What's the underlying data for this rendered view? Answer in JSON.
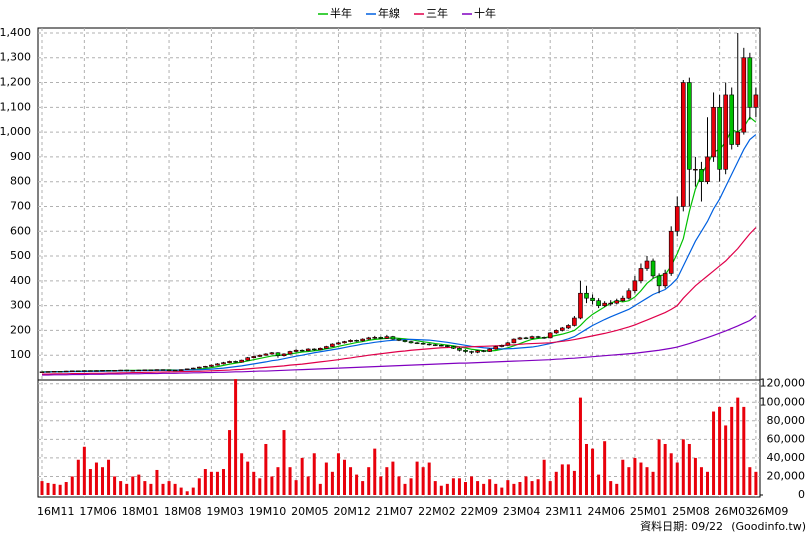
{
  "chart_data": {
    "type": "candlestick",
    "legend": "top",
    "grid": true,
    "up_color": "#e8000b",
    "down_color": "#00c000",
    "source_date": "資料日期: 09/22",
    "source": "(Goodinfo.tw)",
    "categories": [
      "16M11",
      null,
      null,
      null,
      null,
      null,
      null,
      "17M06",
      null,
      null,
      null,
      null,
      null,
      null,
      "18M01",
      null,
      null,
      null,
      null,
      null,
      null,
      "18M08",
      null,
      null,
      null,
      null,
      null,
      null,
      "19M03",
      null,
      null,
      null,
      null,
      null,
      null,
      "19M10",
      null,
      null,
      null,
      null,
      null,
      null,
      "20M05",
      null,
      null,
      null,
      null,
      null,
      null,
      "20M12",
      null,
      null,
      null,
      null,
      null,
      null,
      "21M07",
      null,
      null,
      null,
      null,
      null,
      null,
      "22M02",
      null,
      null,
      null,
      null,
      null,
      null,
      "22M09",
      null,
      null,
      null,
      null,
      null,
      null,
      "23M04",
      null,
      null,
      null,
      null,
      null,
      null,
      "23M11",
      null,
      null,
      null,
      null,
      null,
      null,
      "24M06",
      null,
      null,
      null,
      null,
      null,
      null,
      "25M01",
      null,
      null,
      null,
      null,
      null,
      null,
      "25M08",
      null,
      null,
      null,
      null,
      null,
      null,
      "26M03",
      null,
      null,
      null,
      null,
      null,
      "26M09"
    ],
    "open": [
      32,
      33,
      34,
      35,
      34,
      36,
      37,
      36,
      38,
      37,
      38,
      39,
      38,
      39,
      40,
      38,
      39,
      40,
      41,
      40,
      42,
      41,
      40,
      38,
      42,
      45,
      48,
      52,
      55,
      60,
      65,
      70,
      75,
      72,
      80,
      90,
      95,
      100,
      105,
      110,
      98,
      105,
      115,
      120,
      118,
      125,
      122,
      128,
      135,
      145,
      150,
      155,
      160,
      158,
      165,
      170,
      172,
      168,
      175,
      165,
      160,
      155,
      150,
      148,
      145,
      142,
      140,
      138,
      135,
      128,
      120,
      115,
      112,
      118,
      115,
      125,
      135,
      140,
      150,
      165,
      170,
      168,
      175,
      172,
      170,
      190,
      200,
      210,
      220,
      250,
      350,
      330,
      320,
      300,
      310,
      310,
      320,
      330,
      360,
      400,
      450,
      480,
      420,
      380,
      430,
      600,
      700,
      1200,
      850,
      850,
      800,
      900,
      1100,
      850,
      1150,
      950,
      1000,
      1300,
      1100
    ],
    "high": [
      34,
      35,
      36,
      36,
      37,
      38,
      38,
      39,
      39,
      39,
      40,
      40,
      40,
      41,
      41,
      40,
      41,
      42,
      42,
      43,
      43,
      42,
      41,
      43,
      46,
      50,
      54,
      57,
      62,
      68,
      73,
      78,
      78,
      82,
      93,
      98,
      103,
      108,
      113,
      112,
      108,
      118,
      124,
      123,
      128,
      128,
      131,
      138,
      148,
      153,
      158,
      164,
      163,
      168,
      174,
      178,
      175,
      182,
      178,
      168,
      163,
      158,
      153,
      151,
      148,
      145,
      143,
      141,
      138,
      131,
      124,
      118,
      121,
      121,
      128,
      138,
      143,
      153,
      168,
      174,
      174,
      179,
      178,
      175,
      193,
      204,
      214,
      225,
      258,
      400,
      380,
      345,
      330,
      318,
      322,
      328,
      340,
      370,
      420,
      470,
      500,
      490,
      430,
      445,
      620,
      740,
      1210,
      1220,
      900,
      880,
      1060,
      1160,
      1150,
      1200,
      1180,
      1400,
      1340,
      1320,
      1180
    ],
    "low": [
      31,
      32,
      33,
      33,
      33,
      35,
      35,
      35,
      36,
      36,
      37,
      37,
      37,
      38,
      37,
      37,
      38,
      39,
      39,
      39,
      40,
      39,
      37,
      37,
      41,
      44,
      47,
      50,
      53,
      58,
      63,
      68,
      70,
      70,
      78,
      88,
      93,
      98,
      102,
      90,
      95,
      102,
      112,
      115,
      116,
      118,
      120,
      126,
      133,
      142,
      147,
      152,
      154,
      155,
      162,
      166,
      165,
      166,
      162,
      157,
      152,
      147,
      145,
      142,
      139,
      137,
      135,
      132,
      125,
      115,
      110,
      105,
      108,
      112,
      113,
      122,
      132,
      138,
      148,
      162,
      165,
      165,
      168,
      166,
      168,
      186,
      196,
      206,
      216,
      245,
      310,
      305,
      290,
      295,
      300,
      305,
      315,
      325,
      350,
      390,
      440,
      410,
      350,
      370,
      420,
      580,
      680,
      700,
      780,
      720,
      790,
      880,
      800,
      830,
      930,
      940,
      990,
      1050,
      1060
    ],
    "close": [
      33,
      34,
      35,
      34,
      36,
      37,
      36,
      38,
      37,
      38,
      39,
      38,
      39,
      40,
      38,
      39,
      40,
      41,
      40,
      42,
      41,
      40,
      38,
      42,
      45,
      48,
      52,
      55,
      60,
      65,
      70,
      75,
      72,
      80,
      90,
      95,
      100,
      105,
      110,
      98,
      105,
      115,
      120,
      118,
      125,
      122,
      128,
      135,
      145,
      150,
      155,
      160,
      158,
      165,
      170,
      172,
      168,
      175,
      165,
      160,
      155,
      150,
      148,
      145,
      142,
      140,
      138,
      135,
      128,
      120,
      115,
      112,
      118,
      115,
      125,
      135,
      140,
      150,
      165,
      170,
      168,
      175,
      172,
      170,
      190,
      200,
      210,
      220,
      250,
      350,
      330,
      320,
      300,
      310,
      310,
      320,
      330,
      360,
      400,
      450,
      480,
      420,
      380,
      430,
      600,
      700,
      1200,
      850,
      850,
      800,
      900,
      1100,
      850,
      1150,
      950,
      1000,
      1300,
      1100,
      1150
    ],
    "ylim": [
      0,
      1420
    ],
    "yticks": [
      100,
      200,
      300,
      400,
      500,
      600,
      700,
      800,
      900,
      {
        "value": 1000,
        "label": "1,000"
      },
      {
        "value": 1100,
        "label": "1,100"
      },
      {
        "value": 1200,
        "label": "1,200"
      },
      {
        "value": 1300,
        "label": "1,300"
      },
      {
        "value": 1400,
        "label": "1,400"
      }
    ],
    "series": [
      {
        "name": "半年",
        "color": "#00c000",
        "values": [
          33,
          33,
          34,
          34,
          34,
          35,
          35,
          36,
          36,
          37,
          37,
          38,
          38,
          38,
          39,
          39,
          39,
          39,
          40,
          40,
          40,
          41,
          40,
          40,
          41,
          42,
          44,
          47,
          50,
          54,
          59,
          64,
          68,
          72,
          77,
          82,
          87,
          92,
          97,
          99,
          101,
          105,
          109,
          113,
          115,
          118,
          121,
          126,
          130,
          136,
          141,
          146,
          151,
          155,
          160,
          164,
          166,
          168,
          170,
          168,
          166,
          163,
          158,
          154,
          151,
          147,
          144,
          141,
          138,
          134,
          129,
          124,
          121,
          118,
          117,
          119,
          124,
          130,
          138,
          147,
          156,
          164,
          168,
          170,
          175,
          180,
          185,
          192,
          200,
          220,
          245,
          265,
          280,
          295,
          310,
          320,
          315,
          320,
          335,
          360,
          390,
          410,
          420,
          425,
          460,
          510,
          570,
          680,
          770,
          830,
          870,
          920,
          930,
          960,
          1010,
          1000,
          1020,
          1060,
          1040
        ]
      },
      {
        "name": "年線",
        "color": "#0060e0",
        "values": [
          32,
          32,
          33,
          33,
          33,
          34,
          34,
          34,
          35,
          35,
          35,
          36,
          36,
          37,
          37,
          37,
          38,
          38,
          38,
          39,
          39,
          39,
          39,
          40,
          40,
          41,
          41,
          43,
          44,
          46,
          48,
          51,
          54,
          57,
          61,
          65,
          69,
          73,
          78,
          81,
          86,
          91,
          96,
          100,
          105,
          110,
          114,
          118,
          122,
          126,
          131,
          136,
          140,
          145,
          148,
          152,
          155,
          158,
          160,
          162,
          163,
          164,
          163,
          162,
          161,
          158,
          155,
          152,
          148,
          144,
          140,
          136,
          133,
          130,
          128,
          127,
          125,
          126,
          127,
          129,
          131,
          133,
          137,
          142,
          147,
          153,
          159,
          166,
          175,
          190,
          205,
          220,
          232,
          244,
          255,
          265,
          275,
          285,
          300,
          315,
          330,
          345,
          355,
          365,
          385,
          410,
          460,
          510,
          560,
          600,
          640,
          690,
          730,
          780,
          830,
          880,
          930,
          970,
          990
        ]
      },
      {
        "name": "三年",
        "color": "#e0004a",
        "values": [
          24,
          24,
          25,
          25,
          25,
          26,
          26,
          26,
          27,
          27,
          27,
          28,
          28,
          29,
          29,
          30,
          30,
          31,
          31,
          32,
          32,
          33,
          33,
          34,
          34,
          35,
          35,
          36,
          37,
          38,
          39,
          40,
          42,
          43,
          45,
          47,
          49,
          51,
          53,
          55,
          57,
          60,
          62,
          64,
          67,
          70,
          73,
          76,
          79,
          82,
          86,
          89,
          93,
          96,
          100,
          103,
          106,
          109,
          112,
          115,
          117,
          120,
          122,
          124,
          126,
          128,
          130,
          131,
          132,
          133,
          133,
          134,
          135,
          136,
          137,
          138,
          139,
          141,
          142,
          144,
          146,
          147,
          148,
          149,
          150,
          153,
          156,
          159,
          163,
          168,
          173,
          178,
          183,
          188,
          194,
          200,
          207,
          214,
          222,
          232,
          242,
          252,
          262,
          272,
          285,
          300,
          330,
          355,
          380,
          400,
          420,
          440,
          460,
          480,
          505,
          530,
          560,
          590,
          615
        ]
      },
      {
        "name": "十年",
        "color": "#8000c0",
        "values": [
          20,
          20,
          21,
          21,
          21,
          22,
          22,
          22,
          23,
          23,
          23,
          24,
          24,
          24,
          25,
          25,
          25,
          26,
          26,
          26,
          27,
          27,
          27,
          28,
          28,
          29,
          29,
          30,
          30,
          31,
          31,
          32,
          33,
          33,
          34,
          35,
          36,
          36,
          37,
          38,
          39,
          40,
          41,
          42,
          43,
          44,
          45,
          46,
          47,
          48,
          49,
          50,
          51,
          52,
          53,
          54,
          55,
          56,
          57,
          58,
          59,
          60,
          61,
          62,
          63,
          64,
          65,
          66,
          67,
          68,
          68,
          69,
          70,
          71,
          72,
          73,
          74,
          75,
          76,
          77,
          78,
          79,
          80,
          81,
          82,
          84,
          85,
          87,
          88,
          90,
          92,
          94,
          96,
          98,
          100,
          102,
          104,
          106,
          108,
          111,
          114,
          117,
          120,
          124,
          128,
          133,
          140,
          147,
          155,
          163,
          171,
          180,
          189,
          198,
          208,
          218,
          229,
          240,
          260
        ]
      }
    ],
    "volume": {
      "color": "#e8000b",
      "ylim": [
        0,
        124000
      ],
      "yticks": [
        0,
        {
          "value": 20000,
          "label": "20,000"
        },
        {
          "value": 40000,
          "label": "40,000"
        },
        {
          "value": 60000,
          "label": "60,000"
        },
        {
          "value": 80000,
          "label": "80,000"
        },
        {
          "value": 100000,
          "label": "100,000"
        },
        {
          "value": 120000,
          "label": "120,000"
        }
      ],
      "values": [
        15000,
        13000,
        12000,
        11000,
        14000,
        20000,
        38000,
        52000,
        28000,
        35000,
        30000,
        38000,
        20000,
        15000,
        12000,
        20000,
        22000,
        15000,
        12000,
        27000,
        12000,
        15000,
        12000,
        8000,
        4000,
        8000,
        18000,
        28000,
        25000,
        25000,
        28000,
        70000,
        125000,
        45000,
        36000,
        25000,
        18000,
        55000,
        20000,
        30000,
        70000,
        30000,
        16000,
        40000,
        20000,
        45000,
        12000,
        35000,
        25000,
        45000,
        38000,
        30000,
        22000,
        15000,
        30000,
        50000,
        20000,
        30000,
        36000,
        20000,
        12000,
        18000,
        36000,
        30000,
        35000,
        15000,
        10000,
        12000,
        18000,
        18000,
        14000,
        20000,
        15000,
        12000,
        17000,
        12000,
        8000,
        16000,
        12000,
        14000,
        20000,
        15000,
        17000,
        38000,
        15000,
        25000,
        33000,
        33000,
        26000,
        105000,
        55000,
        50000,
        22000,
        58000,
        15000,
        12000,
        38000,
        30000,
        40000,
        35000,
        30000,
        25000,
        60000,
        55000,
        45000,
        35000,
        60000,
        55000,
        40000,
        30000,
        25000,
        90000,
        95000,
        75000,
        95000,
        105000,
        95000,
        30000,
        25000
      ]
    }
  }
}
